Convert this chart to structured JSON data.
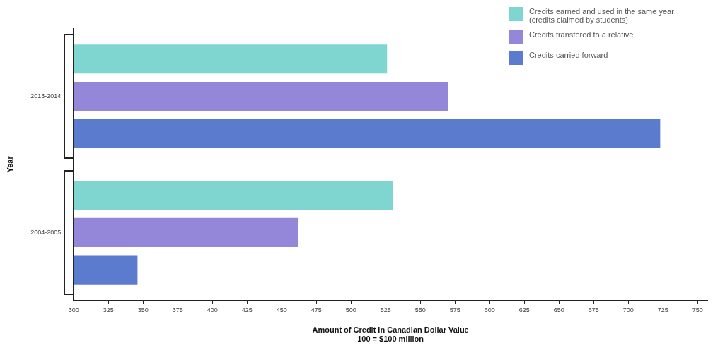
{
  "chart_data": {
    "type": "bar",
    "orientation": "horizontal",
    "xlabel": "Amount of Credit in Canadian Dollar Value\n100 = $100 million",
    "ylabel": "Year",
    "categories": [
      "2013-2014",
      "2004-2005"
    ],
    "series": [
      {
        "name": "Credits earned and used in the same year (credits claimed by students)",
        "color": "#7fd6d0",
        "values": [
          526,
          530
        ]
      },
      {
        "name": "Credits transfered to a relative",
        "color": "#9486d8",
        "values": [
          570,
          462
        ]
      },
      {
        "name": "Credits carried forward",
        "color": "#5b7bcf",
        "values": [
          723,
          346
        ]
      }
    ],
    "xlim": [
      300,
      757
    ],
    "xticks": [
      300,
      325,
      350,
      375,
      400,
      425,
      450,
      475,
      500,
      525,
      550,
      575,
      600,
      625,
      650,
      675,
      700,
      725,
      750
    ],
    "grid": false,
    "legend": "top right"
  }
}
